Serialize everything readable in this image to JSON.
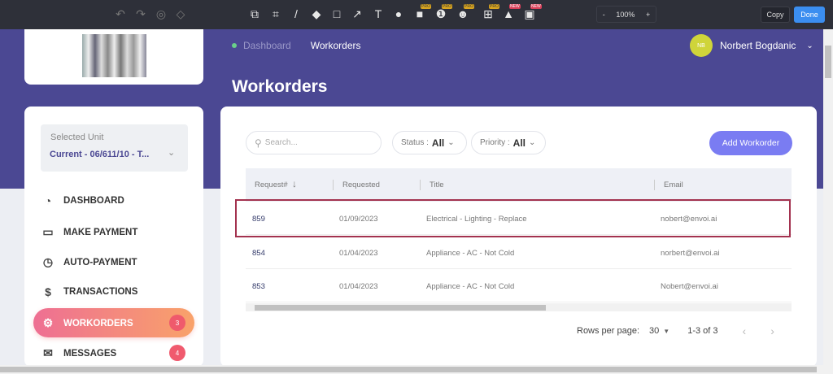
{
  "toolbar": {
    "zoom": "100%",
    "zoom_out": "-",
    "zoom_in": "+",
    "copy": "Copy",
    "done": "Done",
    "pro_badge": "PRO",
    "new_badge": "NEW"
  },
  "header": {
    "breadcrumb": [
      "Dashboard",
      "Workorders"
    ],
    "user_initials": "NB",
    "user_name": "Norbert Bogdanic",
    "page_title": "Workorders"
  },
  "sidebar": {
    "unit_label": "Selected Unit",
    "unit_value": "Current - 06/611/10 - T...",
    "items": [
      {
        "label": "DASHBOARD",
        "icon": "gauge-icon"
      },
      {
        "label": "MAKE PAYMENT",
        "icon": "credit-card-icon"
      },
      {
        "label": "AUTO-PAYMENT",
        "icon": "clock-icon"
      },
      {
        "label": "TRANSACTIONS",
        "icon": "dollar-icon"
      },
      {
        "label": "WORKORDERS",
        "icon": "gear-icon",
        "badge": "3",
        "active": true
      },
      {
        "label": "MESSAGES",
        "icon": "envelope-icon",
        "badge": "4"
      }
    ]
  },
  "main": {
    "search_placeholder": "Search...",
    "status_label": "Status :",
    "status_value": "All",
    "priority_label": "Priority :",
    "priority_value": "All",
    "add_button": "Add Workorder",
    "columns": [
      "Request#",
      "Requested",
      "Title",
      "Email"
    ],
    "rows": [
      {
        "id": "859",
        "date": "01/09/2023",
        "title": "Electrical - Lighting - Replace",
        "email": "nobert@envoi.ai"
      },
      {
        "id": "854",
        "date": "01/04/2023",
        "title": "Appliance - AC - Not Cold",
        "email": "norbert@envoi.ai"
      },
      {
        "id": "853",
        "date": "01/04/2023",
        "title": "Appliance - AC - Not Cold",
        "email": "Nobert@envoi.ai"
      }
    ],
    "rows_per_page_label": "Rows per page:",
    "rows_per_page": "30",
    "range": "1-3 of 3"
  },
  "colors": {
    "accent": "#4b4893",
    "highlight": "#a3324f",
    "add_button": "#7a7cf2"
  }
}
